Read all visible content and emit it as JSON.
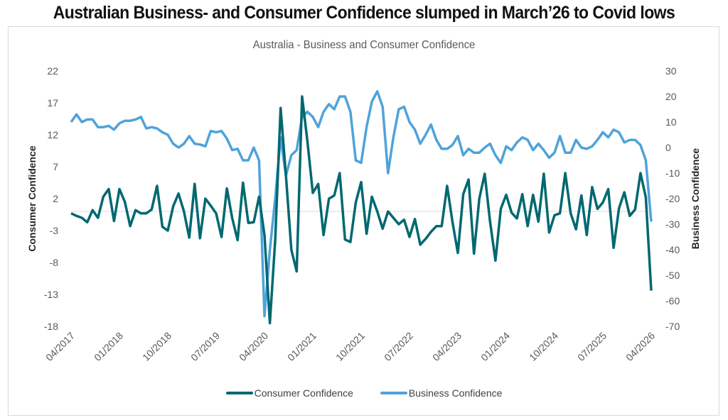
{
  "headline": "Australian Business- and Consumer Confidence slumped in March’26 to Covid lows",
  "chart_data": {
    "type": "line",
    "title": "Australia - Business and Consumer Confidence",
    "xlabel": "",
    "ylabel_left": "Consumer Confidence",
    "ylabel_right": "Business Confidence",
    "ylim_left": [
      -18,
      22
    ],
    "ylim_right": [
      -70,
      30
    ],
    "yticks_left": [
      "22",
      "17",
      "12",
      "7",
      "2",
      "-3",
      "-8",
      "-13",
      "-18"
    ],
    "yticks_right": [
      "30",
      "20",
      "10",
      "0",
      "-10",
      "-20",
      "-30",
      "-40",
      "-50",
      "-60",
      "-70"
    ],
    "x_start": "04/2017",
    "x_end": "04/2026",
    "frequency": "monthly",
    "xticks": [
      "04/2017",
      "01/2018",
      "10/2018",
      "07/2019",
      "04/2020",
      "01/2021",
      "10/2021",
      "07/2022",
      "04/2023",
      "01/2024",
      "10/2024",
      "07/2025",
      "04/2026"
    ],
    "grid": false,
    "legend_position": "bottom",
    "colors": {
      "consumer": "#006870",
      "business": "#4fa3d9"
    },
    "series": [
      {
        "name": "Consumer Confidence",
        "axis": "left",
        "values": [
          -0.3,
          -0.7,
          -1.0,
          -1.7,
          0.2,
          -1.0,
          2.3,
          3.5,
          -1.5,
          3.5,
          1.5,
          -2.3,
          0.2,
          -0.3,
          -0.3,
          0.3,
          4.0,
          -2.4,
          -3.0,
          0.8,
          2.8,
          0.0,
          -4.1,
          4.3,
          -4.2,
          2.0,
          0.9,
          -0.3,
          -4.0,
          3.6,
          -1.1,
          -4.5,
          4.5,
          -1.8,
          -1.7,
          2.3,
          -3.7,
          -17.5,
          -4.5,
          16.2,
          5.6,
          -6.0,
          -9.4,
          18.0,
          11.0,
          2.9,
          4.3,
          -3.7,
          2.0,
          2.5,
          6.0,
          -4.4,
          -4.8,
          1.4,
          4.6,
          -3.5,
          2.3,
          0.0,
          -2.7,
          0.0,
          -1.0,
          -2.0,
          -1.3,
          -4.0,
          -1.2,
          -5.2,
          -4.3,
          -3.2,
          -2.3,
          -2.3,
          4.0,
          -1.6,
          -6.5,
          2.7,
          5.0,
          -6.6,
          2.0,
          5.9,
          -1.6,
          -7.7,
          0.4,
          2.6,
          -0.2,
          -1.1,
          2.7,
          -2.3,
          2.6,
          -1.6,
          5.9,
          -3.3,
          -0.6,
          -0.3,
          6.0,
          -0.3,
          -2.8,
          2.5,
          -3.7,
          3.8,
          0.4,
          1.4,
          3.5,
          -5.7,
          0.5,
          3.0,
          -0.7,
          0.3,
          6.0,
          2.2,
          -12.4
        ]
      },
      {
        "name": "Business Confidence",
        "axis": "right",
        "values": [
          10,
          13,
          10,
          11,
          11,
          8,
          8,
          8.5,
          7,
          9.5,
          10.5,
          10.5,
          11,
          12,
          7.5,
          8,
          7.5,
          6,
          5,
          1.5,
          0,
          1.5,
          4.5,
          1.5,
          1.2,
          0.5,
          6.5,
          6,
          6.5,
          3.5,
          -1,
          -0.5,
          -5,
          -5,
          0,
          -5,
          -66,
          -40,
          -20,
          4,
          -11,
          -3,
          -1,
          12,
          14,
          12,
          8,
          14,
          17,
          15,
          20,
          20,
          14,
          -5,
          -6,
          8,
          18,
          22,
          16,
          -10,
          4,
          15,
          16,
          10,
          7,
          1.5,
          5,
          9,
          3,
          -0.5,
          -0.5,
          1,
          4.5,
          -3,
          -0.5,
          -2,
          -2,
          0,
          1.5,
          -3,
          -6,
          0.5,
          -1,
          2,
          4,
          3,
          -1,
          1.5,
          -1,
          -4,
          -2,
          4.5,
          -2,
          -2,
          3,
          0,
          -0.5,
          0.5,
          3,
          6,
          4,
          7,
          6,
          2,
          3,
          3,
          1,
          -5,
          -29
        ]
      }
    ]
  }
}
